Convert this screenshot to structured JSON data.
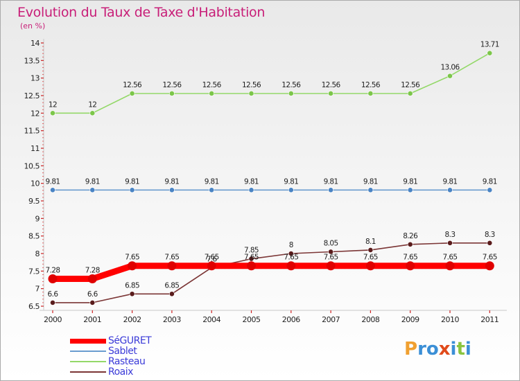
{
  "header": {
    "title": "Evolution du Taux de Taxe d'Habitation",
    "unit": "(en %)"
  },
  "chart_data": {
    "type": "line",
    "title": "Evolution du Taux de Taxe d'Habitation",
    "ylabel": "(en %)",
    "xlabel": "",
    "ylim": [
      6.5,
      14
    ],
    "y_ticks": [
      "6.5",
      "7",
      "7.5",
      "8",
      "8.5",
      "9",
      "9.5",
      "10",
      "10.5",
      "11",
      "11.5",
      "12",
      "12.5",
      "13",
      "13.5",
      "14"
    ],
    "grid": false,
    "legend_position": "bottom-left",
    "categories": [
      "2000",
      "2001",
      "2002",
      "2003",
      "2004",
      "2005",
      "2006",
      "2007",
      "2008",
      "2009",
      "2010",
      "2011"
    ],
    "series": [
      {
        "name": "SéGURET",
        "color": "#ff0000",
        "point_color": "#e00000",
        "values": [
          7.28,
          7.28,
          7.65,
          7.65,
          7.65,
          7.65,
          7.65,
          7.65,
          7.65,
          7.65,
          7.65,
          7.65
        ],
        "labels": [
          "7.28",
          "7.28",
          "7.65",
          "7.65",
          "7.65",
          "7.65",
          "7.65",
          "7.65",
          "7.65",
          "7.65",
          "7.65",
          "7.65"
        ]
      },
      {
        "name": "Sablet",
        "color": "#6a9ccf",
        "point_color": "#4a84c4",
        "values": [
          9.81,
          9.81,
          9.81,
          9.81,
          9.81,
          9.81,
          9.81,
          9.81,
          9.81,
          9.81,
          9.81,
          9.81
        ],
        "labels": [
          "9.81",
          "9.81",
          "9.81",
          "9.81",
          "9.81",
          "9.81",
          "9.81",
          "9.81",
          "9.81",
          "9.81",
          "9.81",
          "9.81"
        ]
      },
      {
        "name": "Rasteau",
        "color": "#93d868",
        "point_color": "#7cc64a",
        "values": [
          12,
          12,
          12.56,
          12.56,
          12.56,
          12.56,
          12.56,
          12.56,
          12.56,
          12.56,
          13.06,
          13.71
        ],
        "labels": [
          "12",
          "12",
          "12.56",
          "12.56",
          "12.56",
          "12.56",
          "12.56",
          "12.56",
          "12.56",
          "12.56",
          "13.06",
          "13.71"
        ]
      },
      {
        "name": "Roaix",
        "color": "#7b3535",
        "point_color": "#5a1c1c",
        "values": [
          6.6,
          6.6,
          6.85,
          6.85,
          7.6,
          7.85,
          8,
          8.05,
          8.1,
          8.26,
          8.3,
          8.3
        ],
        "labels": [
          "6.6",
          "6.6",
          "6.85",
          "6.85",
          "7.6",
          "7.85",
          "8",
          "8.05",
          "8.1",
          "8.26",
          "8.3",
          "8.3"
        ]
      }
    ]
  },
  "logo": {
    "letters": [
      "P",
      "r",
      "o",
      "x",
      "i",
      "t",
      "i"
    ],
    "colors": [
      "#f0a030",
      "#3b8fd6",
      "#3b8fd6",
      "#e04a1a",
      "#3b8fd6",
      "#8ac43f",
      "#3b8fd6"
    ]
  }
}
